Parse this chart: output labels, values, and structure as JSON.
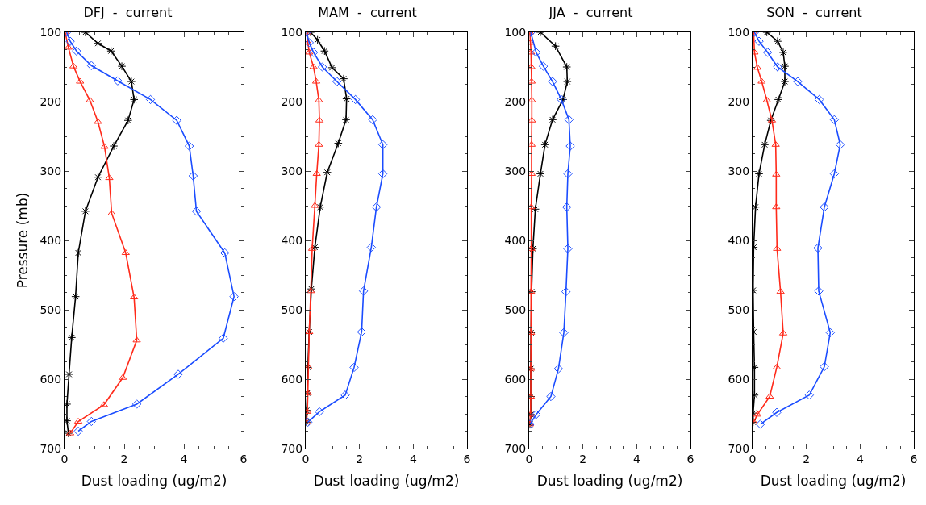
{
  "chart_data": [
    {
      "type": "line",
      "title": "DFJ  -  current",
      "xlabel": "Dust loading (ug/m2)",
      "ylabel": "Pressure (mb)",
      "xlim": [
        0,
        6
      ],
      "xticks": [
        0,
        2,
        4,
        6
      ],
      "ylim": [
        700,
        100
      ],
      "yticks": [
        100,
        200,
        300,
        400,
        500,
        600,
        700
      ],
      "grid": false,
      "series": [
        {
          "color": "#000000",
          "marker": "cross",
          "x": [
            0.7,
            1.12,
            1.56,
            1.92,
            2.24,
            2.33,
            2.13,
            1.65,
            1.12,
            0.7,
            0.46,
            0.37,
            0.24,
            0.15,
            0.08,
            0.08,
            0.13
          ],
          "values": [
            100,
            116,
            127,
            149,
            171,
            197,
            227,
            264,
            309,
            358,
            418,
            481,
            540,
            593,
            636,
            660,
            678
          ]
        },
        {
          "color": "#ff2a1a",
          "marker": "triangle",
          "x": [
            0.02,
            0.13,
            0.3,
            0.52,
            0.85,
            1.12,
            1.34,
            1.5,
            1.58,
            2.05,
            2.33,
            2.42,
            1.95,
            1.32,
            0.46,
            0.19
          ],
          "values": [
            100,
            122,
            149,
            171,
            198,
            229,
            265,
            310,
            361,
            418,
            482,
            544,
            598,
            637,
            661,
            678
          ]
        },
        {
          "color": "#1a4cff",
          "marker": "diamond",
          "x": [
            0.07,
            0.19,
            0.4,
            0.9,
            1.78,
            2.88,
            3.76,
            4.18,
            4.31,
            4.42,
            5.37,
            5.68,
            5.32,
            3.81,
            2.42,
            0.9,
            0.46
          ],
          "values": [
            100,
            113,
            127,
            148,
            170,
            197,
            227,
            264,
            307,
            358,
            418,
            481,
            541,
            593,
            636,
            661,
            675
          ]
        }
      ]
    },
    {
      "type": "line",
      "title": "MAM  -  current",
      "xlabel": "Dust loading (ug/m2)",
      "xlim": [
        0,
        6
      ],
      "xticks": [
        0,
        2,
        4,
        6
      ],
      "ylim": [
        700,
        100
      ],
      "yticks": [
        100,
        200,
        300,
        400,
        500,
        600,
        700
      ],
      "grid": false,
      "series": [
        {
          "color": "#000000",
          "marker": "cross",
          "x": [
            0.18,
            0.44,
            0.7,
            0.98,
            1.41,
            1.52,
            1.5,
            1.21,
            0.8,
            0.54,
            0.34,
            0.21,
            0.13,
            0.08,
            0.06,
            0.03,
            0.03
          ],
          "values": [
            100,
            111,
            127,
            151,
            167,
            196,
            226,
            260,
            302,
            352,
            410,
            470,
            532,
            583,
            620,
            645,
            662
          ]
        },
        {
          "color": "#ff2a1a",
          "marker": "triangle",
          "x": [
            0.06,
            0.08,
            0.13,
            0.29,
            0.39,
            0.49,
            0.51,
            0.49,
            0.41,
            0.34,
            0.24,
            0.19,
            0.13,
            0.1,
            0.08,
            0.06,
            0.03
          ],
          "values": [
            100,
            115,
            129,
            150,
            171,
            198,
            227,
            262,
            304,
            350,
            412,
            473,
            532,
            583,
            620,
            647,
            662
          ]
        },
        {
          "color": "#1a4cff",
          "marker": "diamond",
          "x": [
            0.03,
            0.13,
            0.29,
            0.62,
            1.16,
            1.85,
            2.49,
            2.87,
            2.87,
            2.63,
            2.44,
            2.15,
            2.08,
            1.8,
            1.47,
            0.51,
            0.08
          ],
          "values": [
            100,
            115,
            129,
            150,
            171,
            197,
            226,
            262,
            304,
            352,
            410,
            473,
            532,
            583,
            623,
            647,
            662
          ]
        }
      ]
    },
    {
      "type": "line",
      "title": "JJA  -  current",
      "xlabel": "Dust loading (ug/m2)",
      "xlim": [
        0,
        6
      ],
      "xticks": [
        0,
        2,
        4,
        6
      ],
      "ylim": [
        700,
        100
      ],
      "yticks": [
        100,
        200,
        300,
        400,
        500,
        600,
        700
      ],
      "grid": false,
      "series": [
        {
          "color": "#000000",
          "marker": "cross",
          "x": [
            0.42,
            0.98,
            1.4,
            1.42,
            1.26,
            0.87,
            0.59,
            0.42,
            0.23,
            0.14,
            0.09,
            0.07,
            0.06,
            0.06,
            0.06,
            0.03
          ],
          "values": [
            100,
            120,
            150,
            171,
            197,
            226,
            262,
            304,
            355,
            412,
            474,
            533,
            585,
            625,
            651,
            665
          ]
        },
        {
          "color": "#ff2a1a",
          "marker": "triangle",
          "x": [
            0.03,
            0.05,
            0.07,
            0.08,
            0.09,
            0.1,
            0.1,
            0.09,
            0.09,
            0.08,
            0.08,
            0.07,
            0.07,
            0.06,
            0.06,
            0.05,
            0.03
          ],
          "values": [
            100,
            115,
            129,
            150,
            171,
            198,
            227,
            262,
            304,
            352,
            412,
            474,
            533,
            585,
            625,
            651,
            665
          ]
        },
        {
          "color": "#1a4cff",
          "marker": "diamond",
          "x": [
            0.06,
            0.26,
            0.53,
            0.87,
            1.2,
            1.48,
            1.53,
            1.44,
            1.4,
            1.44,
            1.37,
            1.29,
            1.09,
            0.81,
            0.26,
            0.03
          ],
          "values": [
            100,
            129,
            149,
            171,
            197,
            226,
            264,
            304,
            352,
            412,
            474,
            533,
            585,
            625,
            651,
            665
          ]
        }
      ]
    },
    {
      "type": "line",
      "title": "SON  -  current",
      "xlabel": "Dust loading (ug/m2)",
      "xlim": [
        0,
        6
      ],
      "xticks": [
        0,
        2,
        4,
        6
      ],
      "ylim": [
        700,
        100
      ],
      "yticks": [
        100,
        200,
        300,
        400,
        500,
        600,
        700
      ],
      "grid": false,
      "series": [
        {
          "color": "#000000",
          "marker": "cross",
          "x": [
            0.53,
            0.93,
            1.14,
            1.2,
            1.2,
            0.96,
            0.68,
            0.45,
            0.24,
            0.11,
            0.04,
            0.02,
            0.04,
            0.07,
            0.07,
            0.02,
            0.02
          ],
          "values": [
            100,
            113,
            129,
            149,
            171,
            197,
            227,
            262,
            304,
            352,
            410,
            472,
            532,
            583,
            623,
            649,
            662
          ]
        },
        {
          "color": "#ff2a1a",
          "marker": "triangle",
          "x": [
            0.04,
            0.07,
            0.18,
            0.34,
            0.53,
            0.72,
            0.86,
            0.88,
            0.88,
            0.91,
            1.04,
            1.14,
            0.9,
            0.64,
            0.18,
            0.04
          ],
          "values": [
            100,
            129,
            151,
            171,
            198,
            227,
            262,
            305,
            352,
            412,
            474,
            534,
            583,
            625,
            651,
            662
          ]
        },
        {
          "color": "#1a4cff",
          "marker": "diamond",
          "x": [
            0.07,
            0.24,
            0.56,
            0.93,
            1.68,
            2.48,
            3.04,
            3.26,
            3.04,
            2.67,
            2.43,
            2.46,
            2.89,
            2.67,
            2.11,
            0.9,
            0.29
          ],
          "values": [
            100,
            113,
            129,
            150,
            171,
            197,
            226,
            262,
            304,
            352,
            411,
            473,
            533,
            582,
            623,
            648,
            665
          ]
        }
      ]
    }
  ]
}
